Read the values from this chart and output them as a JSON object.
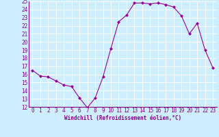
{
  "x": [
    0,
    1,
    2,
    3,
    4,
    5,
    6,
    7,
    8,
    9,
    10,
    11,
    12,
    13,
    14,
    15,
    16,
    17,
    18,
    19,
    20,
    21,
    22,
    23
  ],
  "y": [
    16.5,
    15.8,
    15.7,
    15.2,
    14.7,
    14.5,
    13.1,
    11.9,
    13.1,
    15.7,
    19.2,
    22.5,
    23.3,
    24.8,
    24.8,
    24.7,
    24.8,
    24.6,
    24.3,
    23.2,
    21.0,
    22.3,
    19.0,
    16.8
  ],
  "line_color": "#990099",
  "marker": "D",
  "marker_size": 2.0,
  "marker_linewidth": 0.5,
  "bg_color": "#cceeff",
  "grid_color": "#ffffff",
  "xlabel": "Windchill (Refroidissement éolien,°C)",
  "xlabel_color": "#880088",
  "tick_color": "#880088",
  "ylim": [
    12,
    25
  ],
  "xlim": [
    -0.5,
    23.5
  ],
  "yticks": [
    12,
    13,
    14,
    15,
    16,
    17,
    18,
    19,
    20,
    21,
    22,
    23,
    24,
    25
  ],
  "xticks": [
    0,
    1,
    2,
    3,
    4,
    5,
    6,
    7,
    8,
    9,
    10,
    11,
    12,
    13,
    14,
    15,
    16,
    17,
    18,
    19,
    20,
    21,
    22,
    23
  ],
  "tick_fontsize": 5.5,
  "xlabel_fontsize": 5.5
}
